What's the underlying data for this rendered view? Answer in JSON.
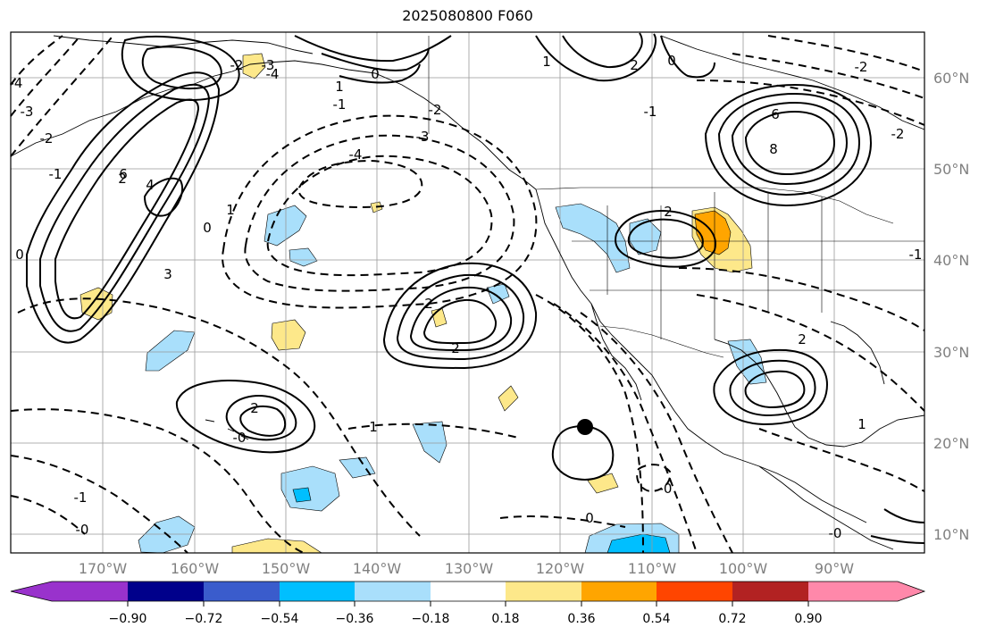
{
  "title": "2025080800 F060",
  "map": {
    "lat_ticks": [
      "60°N",
      "50°N",
      "40°N",
      "30°N",
      "20°N",
      "10°N"
    ],
    "lon_ticks": [
      "170°W",
      "160°W",
      "150°W",
      "140°W",
      "130°W",
      "120°W",
      "110°W",
      "100°W",
      "90°W"
    ],
    "contour_labels": [
      "-3",
      "-4",
      "-2",
      "-1",
      "0",
      "-4",
      "-3",
      "-2",
      "-1",
      "0",
      "1",
      "2",
      "3",
      "4",
      "6",
      "-2",
      "-3",
      "-4",
      "0",
      "1",
      "2",
      "2",
      "6",
      "8",
      "-2",
      "-1",
      "0",
      "1",
      "2",
      "-0",
      "0",
      "1",
      "2",
      "-1",
      "-0",
      "-0",
      "-0",
      "1",
      "2",
      "-2",
      "-1",
      "2"
    ]
  },
  "colorbar": {
    "colors": [
      "#9932cc",
      "#00008b",
      "#3a5ccc",
      "#00bfff",
      "#a9dffb",
      "#ffffff",
      "#fde88a",
      "#ffa500",
      "#ff4500",
      "#b22222",
      "#ff88aa"
    ],
    "labels": [
      "−0.90",
      "−0.72",
      "−0.54",
      "−0.36",
      "−0.18",
      "0.18",
      "0.36",
      "0.54",
      "0.72",
      "0.90"
    ]
  }
}
